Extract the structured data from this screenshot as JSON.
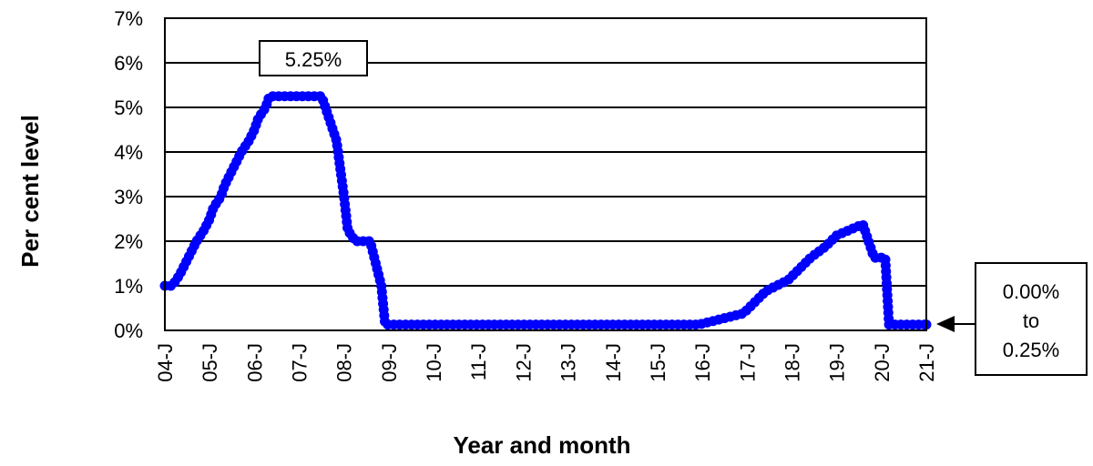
{
  "chart_data": {
    "type": "line",
    "title": "",
    "xlabel": "Year and month",
    "ylabel": "Per cent level",
    "ylim": [
      0,
      7
    ],
    "yticks": [
      "0%",
      "1%",
      "2%",
      "3%",
      "4%",
      "5%",
      "6%",
      "7%"
    ],
    "xticks": [
      "04-J",
      "05-J",
      "06-J",
      "07-J",
      "08-J",
      "09-J",
      "10-J",
      "11-J",
      "12-J",
      "13-J",
      "14-J",
      "15-J",
      "16-J",
      "17-J",
      "18-J",
      "19-J",
      "20-J",
      "21-J"
    ],
    "grid": true,
    "line_color": "#0000FF",
    "series": [
      {
        "x": [
          2004.0,
          2004.167,
          2004.333,
          2004.458,
          2004.583,
          2004.708,
          2004.875,
          2005.0,
          2005.083,
          2005.25,
          2005.333,
          2005.458,
          2005.583,
          2005.708,
          2005.875,
          2006.0,
          2006.083,
          2006.25,
          2006.333,
          2006.5,
          2007.5,
          2007.667,
          2007.833,
          2008.0,
          2008.083,
          2008.25,
          2008.583,
          2008.833,
          2008.917,
          2015.917,
          2016.917,
          2017.167,
          2017.417,
          2017.917,
          2018.167,
          2018.417,
          2018.75,
          2019.0,
          2019.583,
          2019.667,
          2019.833,
          2020.083,
          2020.167,
          2021.0
        ],
        "y": [
          1.0,
          1.0,
          1.25,
          1.5,
          1.75,
          2.0,
          2.25,
          2.5,
          2.75,
          3.0,
          3.25,
          3.5,
          3.75,
          4.0,
          4.25,
          4.5,
          4.75,
          5.0,
          5.25,
          5.25,
          5.25,
          4.75,
          4.25,
          3.0,
          2.25,
          2.0,
          2.0,
          1.0,
          0.13,
          0.13,
          0.38,
          0.63,
          0.88,
          1.13,
          1.38,
          1.63,
          1.88,
          2.13,
          2.38,
          2.13,
          1.63,
          1.63,
          0.13,
          0.13
        ]
      }
    ],
    "annotations": {
      "peak_label": "5.25%",
      "range_label_lines": [
        "0.00%",
        "to",
        "0.25%"
      ]
    }
  }
}
